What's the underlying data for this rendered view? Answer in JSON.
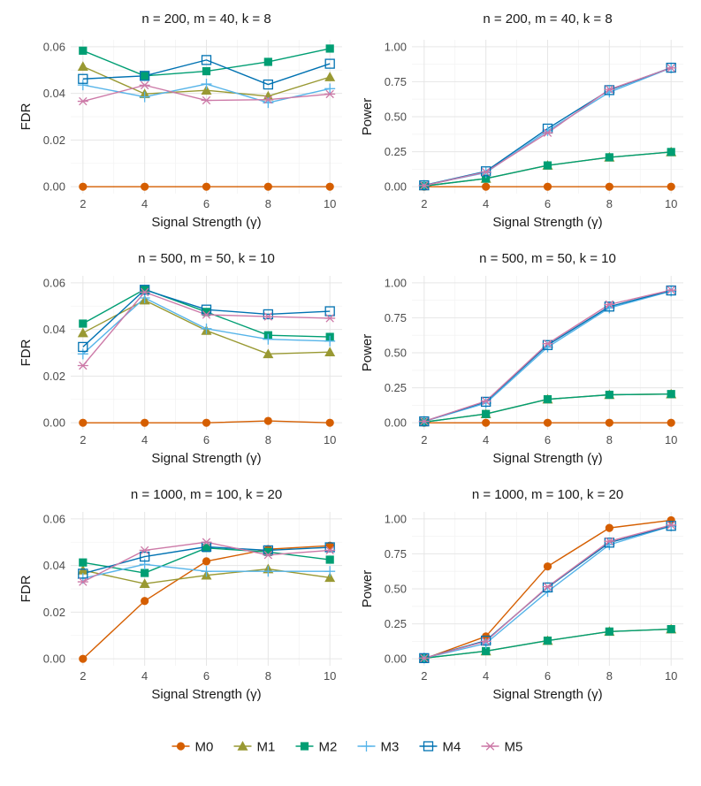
{
  "chart_data": {
    "type": "line",
    "layout": "3x2 facet grid",
    "series_names": [
      "M0",
      "M1",
      "M2",
      "M3",
      "M4",
      "M5"
    ],
    "series_colors": {
      "M0": "#D55E00",
      "M1": "#999933",
      "M2": "#009E73",
      "M3": "#56B4E9",
      "M4": "#0072B2",
      "M5": "#CC79A7"
    },
    "series_markers": {
      "M0": "circle",
      "M1": "triangle",
      "M2": "square-filled",
      "M3": "plus",
      "M4": "square-open",
      "M5": "asterisk"
    },
    "x_label": "Signal Strength (γ)",
    "x_ticks": [
      2,
      4,
      6,
      8,
      10
    ],
    "panels": [
      {
        "title": "n = 200, m = 40, k = 8",
        "ylabel": "FDR",
        "ylim": [
          0,
          0.06
        ],
        "y_ticks": [
          0,
          0.02,
          0.04,
          0.06
        ],
        "y_tick_labels": [
          "0.00",
          "0.02",
          "0.04",
          "0.06"
        ],
        "x": [
          2,
          4,
          6,
          8,
          10
        ],
        "series": [
          {
            "name": "M0",
            "values": [
              0,
              0,
              0,
              0,
              0
            ]
          },
          {
            "name": "M1",
            "values": [
              0.0515,
              0.0398,
              0.0413,
              0.0388,
              0.047
            ]
          },
          {
            "name": "M2",
            "values": [
              0.0583,
              0.0475,
              0.0495,
              0.0535,
              0.0592
            ]
          },
          {
            "name": "M3",
            "values": [
              0.0436,
              0.0385,
              0.044,
              0.036,
              0.042
            ]
          },
          {
            "name": "M4",
            "values": [
              0.0462,
              0.0475,
              0.0543,
              0.0438,
              0.0527
            ]
          },
          {
            "name": "M5",
            "values": [
              0.0366,
              0.0435,
              0.037,
              0.0373,
              0.0397
            ]
          }
        ]
      },
      {
        "title": "n = 200, m = 40, k = 8",
        "ylabel": "Power",
        "ylim": [
          0,
          1
        ],
        "y_ticks": [
          0,
          0.25,
          0.5,
          0.75,
          1
        ],
        "y_tick_labels": [
          "0.00",
          "0.25",
          "0.50",
          "0.75",
          "1.00"
        ],
        "x": [
          2,
          4,
          6,
          8,
          10
        ],
        "series": [
          {
            "name": "M0",
            "values": [
              0,
              0,
              0,
              0,
              0
            ]
          },
          {
            "name": "M1",
            "values": [
              0.005,
              0.058,
              0.152,
              0.21,
              0.248
            ]
          },
          {
            "name": "M2",
            "values": [
              0.005,
              0.058,
              0.152,
              0.21,
              0.248
            ]
          },
          {
            "name": "M3",
            "values": [
              0.01,
              0.1,
              0.4,
              0.675,
              0.848
            ]
          },
          {
            "name": "M4",
            "values": [
              0.01,
              0.11,
              0.415,
              0.69,
              0.85
            ]
          },
          {
            "name": "M5",
            "values": [
              0.008,
              0.105,
              0.385,
              0.695,
              0.848
            ]
          }
        ]
      },
      {
        "title": "n = 500, m = 50, k = 10",
        "ylabel": "FDR",
        "ylim": [
          0,
          0.06
        ],
        "y_ticks": [
          0,
          0.02,
          0.04,
          0.06
        ],
        "y_tick_labels": [
          "0.00",
          "0.02",
          "0.04",
          "0.06"
        ],
        "x": [
          2,
          4,
          6,
          8,
          10
        ],
        "series": [
          {
            "name": "M0",
            "values": [
              0,
              0,
              0,
              0.0008,
              0
            ]
          },
          {
            "name": "M1",
            "values": [
              0.0385,
              0.0525,
              0.0395,
              0.0295,
              0.0303
            ]
          },
          {
            "name": "M2",
            "values": [
              0.0425,
              0.0572,
              0.0475,
              0.0375,
              0.0368
            ]
          },
          {
            "name": "M3",
            "values": [
              0.0295,
              0.0535,
              0.0403,
              0.0358,
              0.035
            ]
          },
          {
            "name": "M4",
            "values": [
              0.0325,
              0.057,
              0.0485,
              0.0465,
              0.0478
            ]
          },
          {
            "name": "M5",
            "values": [
              0.0245,
              0.056,
              0.0463,
              0.0455,
              0.0448
            ]
          }
        ]
      },
      {
        "title": "n = 500, m = 50, k = 10",
        "ylabel": "Power",
        "ylim": [
          0,
          1
        ],
        "y_ticks": [
          0,
          0.25,
          0.5,
          0.75,
          1
        ],
        "y_tick_labels": [
          "0.00",
          "0.25",
          "0.50",
          "0.75",
          "1.00"
        ],
        "x": [
          2,
          4,
          6,
          8,
          10
        ],
        "series": [
          {
            "name": "M0",
            "values": [
              0,
              0,
              0,
              0,
              0
            ]
          },
          {
            "name": "M1",
            "values": [
              0.005,
              0.063,
              0.168,
              0.2,
              0.205
            ]
          },
          {
            "name": "M2",
            "values": [
              0.005,
              0.063,
              0.168,
              0.2,
              0.205
            ]
          },
          {
            "name": "M3",
            "values": [
              0.01,
              0.14,
              0.54,
              0.82,
              0.94
            ]
          },
          {
            "name": "M4",
            "values": [
              0.01,
              0.15,
              0.555,
              0.83,
              0.945
            ]
          },
          {
            "name": "M5",
            "values": [
              0.01,
              0.155,
              0.565,
              0.845,
              0.948
            ]
          }
        ]
      },
      {
        "title": "n = 1000, m = 100, k = 20",
        "ylabel": "FDR",
        "ylim": [
          0,
          0.06
        ],
        "y_ticks": [
          0,
          0.02,
          0.04,
          0.06
        ],
        "y_tick_labels": [
          "0.00",
          "0.02",
          "0.04",
          "0.06"
        ],
        "x": [
          2,
          4,
          6,
          8,
          10
        ],
        "series": [
          {
            "name": "M0",
            "values": [
              0,
              0.0248,
              0.0418,
              0.047,
              0.0485
            ]
          },
          {
            "name": "M1",
            "values": [
              0.038,
              0.0322,
              0.0358,
              0.0385,
              0.0348
            ]
          },
          {
            "name": "M2",
            "values": [
              0.0413,
              0.0368,
              0.0475,
              0.0458,
              0.0425
            ]
          },
          {
            "name": "M3",
            "values": [
              0.0345,
              0.0405,
              0.0375,
              0.0375,
              0.0375
            ]
          },
          {
            "name": "M4",
            "values": [
              0.0365,
              0.0438,
              0.048,
              0.0465,
              0.0478
            ]
          },
          {
            "name": "M5",
            "values": [
              0.033,
              0.0465,
              0.05,
              0.0445,
              0.0465
            ]
          }
        ]
      },
      {
        "title": "n = 1000, m = 100, k = 20",
        "ylabel": "Power",
        "ylim": [
          0,
          1
        ],
        "y_ticks": [
          0,
          0.25,
          0.5,
          0.75,
          1
        ],
        "y_tick_labels": [
          "0.00",
          "0.25",
          "0.50",
          "0.75",
          "1.00"
        ],
        "x": [
          2,
          4,
          6,
          8,
          10
        ],
        "series": [
          {
            "name": "M0",
            "values": [
              0,
              0.16,
              0.66,
              0.935,
              0.99
            ]
          },
          {
            "name": "M1",
            "values": [
              0.005,
              0.055,
              0.13,
              0.195,
              0.212
            ]
          },
          {
            "name": "M2",
            "values": [
              0.005,
              0.055,
              0.13,
              0.195,
              0.212
            ]
          },
          {
            "name": "M3",
            "values": [
              0.005,
              0.11,
              0.48,
              0.815,
              0.948
            ]
          },
          {
            "name": "M4",
            "values": [
              0.005,
              0.13,
              0.51,
              0.83,
              0.95
            ]
          },
          {
            "name": "M5",
            "values": [
              0.005,
              0.125,
              0.515,
              0.84,
              0.955
            ]
          }
        ]
      }
    ],
    "legend": {
      "position": "bottom",
      "entries": [
        "M0",
        "M1",
        "M2",
        "M3",
        "M4",
        "M5"
      ]
    }
  }
}
